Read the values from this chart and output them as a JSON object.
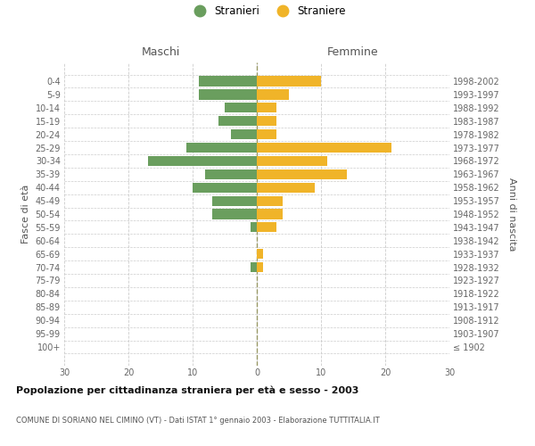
{
  "age_groups": [
    "100+",
    "95-99",
    "90-94",
    "85-89",
    "80-84",
    "75-79",
    "70-74",
    "65-69",
    "60-64",
    "55-59",
    "50-54",
    "45-49",
    "40-44",
    "35-39",
    "30-34",
    "25-29",
    "20-24",
    "15-19",
    "10-14",
    "5-9",
    "0-4"
  ],
  "birth_years": [
    "≤ 1902",
    "1903-1907",
    "1908-1912",
    "1913-1917",
    "1918-1922",
    "1923-1927",
    "1928-1932",
    "1933-1937",
    "1938-1942",
    "1943-1947",
    "1948-1952",
    "1953-1957",
    "1958-1962",
    "1963-1967",
    "1968-1972",
    "1973-1977",
    "1978-1982",
    "1983-1987",
    "1988-1992",
    "1993-1997",
    "1998-2002"
  ],
  "males": [
    0,
    0,
    0,
    0,
    0,
    0,
    1,
    0,
    0,
    1,
    7,
    7,
    10,
    8,
    17,
    11,
    4,
    6,
    5,
    9,
    9
  ],
  "females": [
    0,
    0,
    0,
    0,
    0,
    0,
    1,
    1,
    0,
    3,
    4,
    4,
    9,
    14,
    11,
    21,
    3,
    3,
    3,
    5,
    10
  ],
  "male_color": "#6a9e5e",
  "female_color": "#f0b429",
  "xlabel_left": "Maschi",
  "xlabel_right": "Femmine",
  "ylabel_left": "Fasce di età",
  "ylabel_right": "Anni di nascita",
  "legend_male": "Stranieri",
  "legend_female": "Straniere",
  "title": "Popolazione per cittadinanza straniera per età e sesso - 2003",
  "subtitle": "COMUNE DI SORIANO NEL CIMINO (VT) - Dati ISTAT 1° gennaio 2003 - Elaborazione TUTTITALIA.IT",
  "xlim": 30,
  "background_color": "#ffffff",
  "grid_color": "#cccccc",
  "bar_height": 0.75,
  "center_line_color": "#999966"
}
